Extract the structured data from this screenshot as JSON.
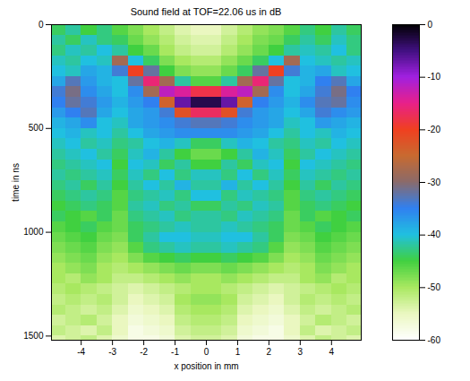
{
  "chart_data": {
    "type": "heatmap",
    "title": "Sound field at TOF=22.06 us in dB",
    "xlabel": "x position in mm",
    "ylabel": "time in ns",
    "xlim": [
      -4.95,
      4.95
    ],
    "xticks": [
      -4,
      -3,
      -2,
      -1,
      0,
      1,
      2,
      3,
      4
    ],
    "ylim": [
      0,
      1520
    ],
    "yticks": [
      0,
      500,
      1000,
      1500
    ],
    "x": [
      -4.75,
      -4.25,
      -3.75,
      -3.25,
      -2.75,
      -2.25,
      -1.75,
      -1.25,
      -0.75,
      -0.25,
      0.25,
      0.75,
      1.25,
      1.75,
      2.25,
      2.75,
      3.25,
      3.75,
      4.25,
      4.75
    ],
    "y": [
      25,
      75,
      125,
      175,
      225,
      275,
      325,
      375,
      425,
      475,
      525,
      575,
      625,
      675,
      725,
      775,
      825,
      875,
      925,
      975,
      1025,
      1075,
      1125,
      1175,
      1225,
      1275,
      1325,
      1375,
      1425,
      1475,
      1525
    ],
    "cells": [
      [
        -44,
        -42,
        -45,
        -43,
        -46,
        -48,
        -50,
        -52,
        -54,
        -55,
        -55,
        -53,
        -51,
        -49,
        -48,
        -46,
        -43,
        -45,
        -42,
        -44
      ],
      [
        -42,
        -44,
        -41,
        -43,
        -44,
        -47,
        -49,
        -51,
        -53,
        -54,
        -54,
        -52,
        -50,
        -48,
        -47,
        -44,
        -42,
        -44,
        -41,
        -43
      ],
      [
        -43,
        -41,
        -42,
        -40,
        -42,
        -45,
        -47,
        -50,
        -52,
        -53,
        -53,
        -51,
        -49,
        -47,
        -45,
        -42,
        -41,
        -42,
        -40,
        -43
      ],
      [
        -41,
        -42,
        -40,
        -41,
        -28,
        -40,
        -44,
        -48,
        -50,
        -51,
        -51,
        -49,
        -47,
        -44,
        -40,
        -28,
        -40,
        -41,
        -42,
        -41
      ],
      [
        -40,
        -41,
        -38,
        -39,
        -34,
        -20,
        -32,
        -45,
        -48,
        -49,
        -49,
        -47,
        -44,
        -32,
        -20,
        -34,
        -39,
        -38,
        -41,
        -40
      ],
      [
        -38,
        -33,
        -37,
        -39,
        -40,
        -32,
        -16,
        -28,
        -42,
        -46,
        -46,
        -42,
        -28,
        -16,
        -32,
        -40,
        -39,
        -35,
        -33,
        -38
      ],
      [
        -34,
        -31,
        -36,
        -38,
        -40,
        -36,
        -28,
        -12,
        -14,
        -18,
        -18,
        -14,
        -12,
        -28,
        -36,
        -40,
        -38,
        -34,
        -31,
        -35
      ],
      [
        -35,
        -32,
        -34,
        -37,
        -39,
        -37,
        -35,
        -24,
        -7,
        -3,
        -3,
        -7,
        -24,
        -35,
        -37,
        -39,
        -36,
        -33,
        -32,
        -36
      ],
      [
        -37,
        -35,
        -33,
        -38,
        -40,
        -38,
        -37,
        -34,
        -22,
        -17,
        -17,
        -22,
        -34,
        -37,
        -38,
        -40,
        -38,
        -34,
        -36,
        -37
      ],
      [
        -39,
        -38,
        -36,
        -40,
        -41,
        -38,
        -37,
        -36,
        -34,
        -33,
        -33,
        -34,
        -36,
        -37,
        -38,
        -41,
        -40,
        -37,
        -38,
        -39
      ],
      [
        -40,
        -39,
        -41,
        -40,
        -42,
        -40,
        -38,
        -37,
        -36,
        -36,
        -36,
        -36,
        -37,
        -38,
        -40,
        -42,
        -40,
        -41,
        -39,
        -40
      ],
      [
        -41,
        -40,
        -42,
        -41,
        -43,
        -42,
        -40,
        -39,
        -41,
        -44,
        -44,
        -41,
        -39,
        -40,
        -42,
        -43,
        -41,
        -42,
        -40,
        -41
      ],
      [
        -42,
        -41,
        -40,
        -42,
        -44,
        -41,
        -39,
        -42,
        -45,
        -47,
        -47,
        -45,
        -42,
        -39,
        -41,
        -44,
        -42,
        -40,
        -41,
        -42
      ],
      [
        -43,
        -42,
        -41,
        -40,
        -45,
        -40,
        -41,
        -44,
        -42,
        -45,
        -45,
        -42,
        -44,
        -41,
        -40,
        -45,
        -40,
        -41,
        -42,
        -43
      ],
      [
        -42,
        -43,
        -42,
        -41,
        -44,
        -41,
        -43,
        -40,
        -43,
        -41,
        -41,
        -43,
        -40,
        -43,
        -41,
        -44,
        -41,
        -42,
        -43,
        -42
      ],
      [
        -43,
        -42,
        -44,
        -42,
        -45,
        -42,
        -40,
        -42,
        -39,
        -42,
        -42,
        -39,
        -42,
        -40,
        -42,
        -45,
        -42,
        -44,
        -42,
        -43
      ],
      [
        -44,
        -43,
        -42,
        -43,
        -46,
        -43,
        -42,
        -41,
        -43,
        -40,
        -40,
        -43,
        -41,
        -42,
        -43,
        -46,
        -43,
        -42,
        -43,
        -44
      ],
      [
        -45,
        -44,
        -43,
        -44,
        -46,
        -42,
        -41,
        -43,
        -42,
        -44,
        -44,
        -42,
        -43,
        -41,
        -42,
        -46,
        -44,
        -43,
        -44,
        -45
      ],
      [
        -44,
        -45,
        -46,
        -44,
        -47,
        -43,
        -42,
        -41,
        -43,
        -42,
        -42,
        -43,
        -41,
        -42,
        -43,
        -47,
        -44,
        -46,
        -45,
        -44
      ],
      [
        -46,
        -45,
        -44,
        -46,
        -47,
        -44,
        -43,
        -42,
        -41,
        -42,
        -42,
        -41,
        -42,
        -43,
        -44,
        -47,
        -46,
        -44,
        -45,
        -46
      ],
      [
        -47,
        -46,
        -45,
        -47,
        -48,
        -44,
        -42,
        -40,
        -40,
        -41,
        -41,
        -40,
        -40,
        -42,
        -44,
        -48,
        -47,
        -45,
        -46,
        -47
      ],
      [
        -48,
        -47,
        -46,
        -48,
        -49,
        -46,
        -43,
        -42,
        -41,
        -42,
        -42,
        -41,
        -42,
        -43,
        -46,
        -49,
        -48,
        -46,
        -47,
        -48
      ],
      [
        -49,
        -48,
        -47,
        -49,
        -50,
        -48,
        -46,
        -45,
        -44,
        -45,
        -45,
        -44,
        -45,
        -46,
        -48,
        -50,
        -49,
        -47,
        -48,
        -49
      ],
      [
        -50,
        -49,
        -48,
        -50,
        -51,
        -50,
        -49,
        -48,
        -47,
        -48,
        -48,
        -47,
        -48,
        -49,
        -50,
        -51,
        -50,
        -48,
        -49,
        -50
      ],
      [
        -50,
        -51,
        -49,
        -50,
        -52,
        -52,
        -51,
        -50,
        -49,
        -50,
        -50,
        -49,
        -50,
        -51,
        -52,
        -52,
        -50,
        -49,
        -51,
        -50
      ],
      [
        -51,
        -50,
        -51,
        -52,
        -53,
        -54,
        -53,
        -52,
        -51,
        -50,
        -50,
        -51,
        -52,
        -53,
        -54,
        -53,
        -52,
        -51,
        -50,
        -51
      ],
      [
        -52,
        -51,
        -52,
        -51,
        -53,
        -55,
        -54,
        -53,
        -50,
        -49,
        -49,
        -50,
        -53,
        -54,
        -55,
        -53,
        -51,
        -52,
        -51,
        -52
      ],
      [
        -51,
        -52,
        -53,
        -52,
        -54,
        -56,
        -55,
        -54,
        -51,
        -50,
        -50,
        -51,
        -54,
        -55,
        -56,
        -54,
        -52,
        -53,
        -52,
        -51
      ],
      [
        -53,
        -52,
        -51,
        -53,
        -55,
        -57,
        -56,
        -55,
        -52,
        -51,
        -51,
        -52,
        -55,
        -56,
        -57,
        -55,
        -53,
        -51,
        -52,
        -53
      ],
      [
        -52,
        -53,
        -54,
        -52,
        -55,
        -58,
        -57,
        -56,
        -53,
        -52,
        -52,
        -53,
        -56,
        -57,
        -58,
        -55,
        -52,
        -54,
        -53,
        -52
      ],
      [
        -54,
        -53,
        -52,
        -54,
        -56,
        -58,
        -58,
        -57,
        -54,
        -53,
        -53,
        -54,
        -57,
        -58,
        -58,
        -56,
        -54,
        -52,
        -53,
        -54
      ]
    ],
    "colorbar": {
      "range": [
        -60,
        0
      ],
      "ticks": [
        0,
        -10,
        -20,
        -30,
        -40,
        -50,
        -60
      ]
    }
  }
}
